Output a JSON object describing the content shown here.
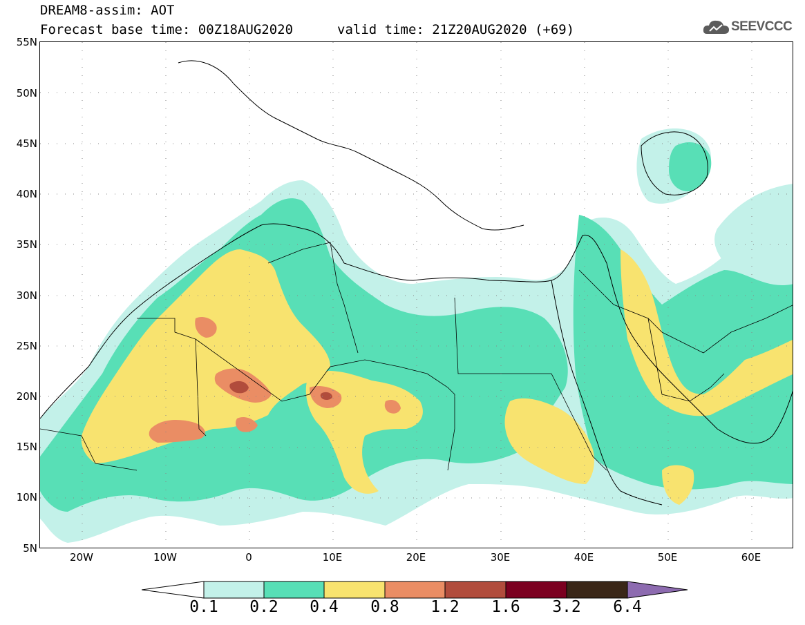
{
  "header": {
    "model_title": "DREAM8-assim: AOT",
    "base_time": "Forecast base time: 00Z18AUG2020",
    "valid_time": "valid time: 21Z20AUG2020 (+69)",
    "logo_text": "SEEVCCC"
  },
  "map": {
    "lat_labels": [
      "55N",
      "50N",
      "45N",
      "40N",
      "35N",
      "30N",
      "25N",
      "20N",
      "15N",
      "10N",
      "5N"
    ],
    "lon_labels": [
      "20W",
      "10W",
      "0",
      "10E",
      "20E",
      "30E",
      "40E",
      "50E",
      "60E"
    ],
    "lon_range": [
      -25,
      65
    ],
    "lat_range": [
      5,
      55
    ],
    "grid": "dotted"
  },
  "colorbar": {
    "labels": [
      "0.1",
      "0.2",
      "0.4",
      "0.8",
      "1.2",
      "1.6",
      "3.2",
      "6.4"
    ],
    "colors": [
      "#ffffff",
      "#c3f1e9",
      "#58dfb6",
      "#f8e36f",
      "#ea8d64",
      "#b14c3c",
      "#7b0020",
      "#3a2718",
      "#8d6bb0"
    ]
  },
  "colors": {
    "aot_0.1": "#c3f1e9",
    "aot_0.2": "#58dfb6",
    "aot_0.4": "#f8e36f",
    "aot_0.8": "#ea8d64",
    "aot_1.2": "#b14c3c",
    "logo": "#5b5b5b"
  }
}
